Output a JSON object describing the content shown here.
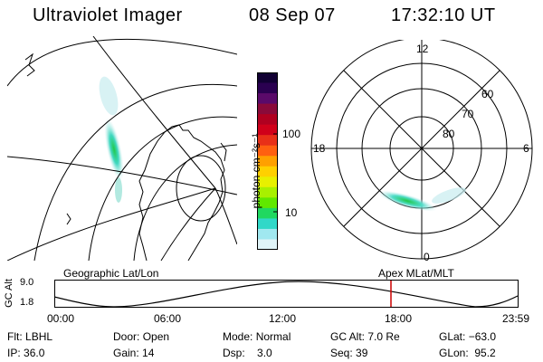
{
  "header": {
    "instrument": "Ultraviolet Imager",
    "date": "08 Sep 07",
    "time": "17:32:10 UT"
  },
  "colorbar": {
    "unit_label": "photon cm⁻²s⁻¹",
    "ticks": [
      "100",
      "10"
    ],
    "colors": [
      "#110033",
      "#2a0050",
      "#5a0a6a",
      "#8a0a3a",
      "#b00020",
      "#d0001a",
      "#e83018",
      "#ff6010",
      "#ffa000",
      "#ffd000",
      "#e8f000",
      "#a8f000",
      "#60e800",
      "#20d860",
      "#30d8c8",
      "#a0e8f0",
      "#e0f4f8"
    ]
  },
  "polar_plot": {
    "mlt_labels": [
      "12",
      "18",
      "6",
      "0"
    ],
    "lat_labels": [
      "60",
      "70",
      "80"
    ]
  },
  "timeline": {
    "left_caption": "Geographic Lat/Lon",
    "right_caption": "Apex MLat/MLT",
    "y_axis_label": "GC Alt",
    "y_ticks": [
      "9.0",
      "1.8"
    ],
    "x_ticks": [
      "00:00",
      "06:00",
      "12:00",
      "18:00",
      "23:59"
    ],
    "marker_color": "#cc0000"
  },
  "status": {
    "row1": [
      {
        "key": "Flt:",
        "value": "LBHL"
      },
      {
        "key": "Door:",
        "value": "Open"
      },
      {
        "key": "Mode:",
        "value": "Normal"
      },
      {
        "key": "GC Alt:",
        "value": "7.0 Re"
      },
      {
        "key": "GLat:",
        "value": "−63.0"
      }
    ],
    "row2": [
      {
        "key": "IP:",
        "value": "36.0"
      },
      {
        "key": "Gain:",
        "value": "14"
      },
      {
        "key": "Dsp:",
        "value": "3.0"
      },
      {
        "key": "Seq:",
        "value": "39"
      },
      {
        "key": "GLon:",
        "value": "95.2"
      }
    ]
  }
}
